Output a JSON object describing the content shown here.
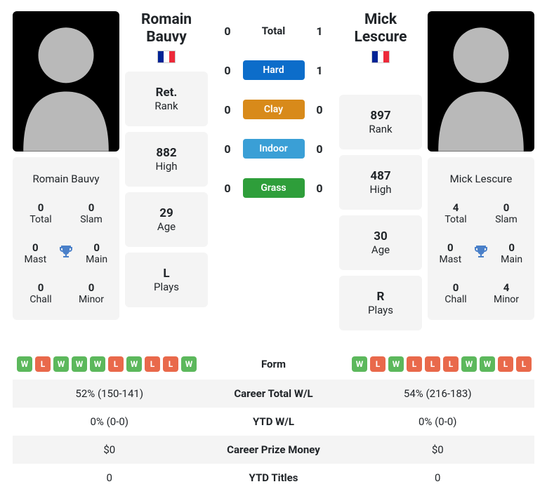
{
  "players": {
    "p1": {
      "name": "Romain Bauvy",
      "first": "Romain",
      "last": "Bauvy",
      "flag": "FR",
      "rank": "Ret.",
      "high": "882",
      "age": "29",
      "plays": "L",
      "titles": {
        "total": "0",
        "slam": "0",
        "mast": "0",
        "main": "0",
        "chall": "0",
        "minor": "0"
      },
      "careerWL": "52% (150-141)",
      "ytdWL": "0% (0-0)",
      "prize": "$0",
      "ytdTitles": "0",
      "form": [
        "W",
        "L",
        "W",
        "W",
        "W",
        "L",
        "W",
        "L",
        "L",
        "W"
      ]
    },
    "p2": {
      "name": "Mick Lescure",
      "first": "Mick",
      "last": "Lescure",
      "flag": "FR",
      "rank": "897",
      "high": "487",
      "age": "30",
      "plays": "R",
      "titles": {
        "total": "4",
        "slam": "0",
        "mast": "0",
        "main": "0",
        "chall": "0",
        "minor": "4"
      },
      "careerWL": "54% (216-183)",
      "ytdWL": "0% (0-0)",
      "prize": "$0",
      "ytdTitles": "0",
      "form": [
        "W",
        "L",
        "W",
        "L",
        "L",
        "L",
        "W",
        "W",
        "L",
        "L"
      ]
    }
  },
  "h2h": {
    "total": {
      "p1": "0",
      "p2": "1",
      "label": "Total"
    },
    "hard": {
      "p1": "0",
      "p2": "1",
      "label": "Hard",
      "color": "#0c6dca"
    },
    "clay": {
      "p1": "0",
      "p2": "0",
      "label": "Clay",
      "color": "#d88a1a"
    },
    "indoor": {
      "p1": "0",
      "p2": "0",
      "label": "Indoor",
      "color": "#3a9fd6"
    },
    "grass": {
      "p1": "0",
      "p2": "0",
      "label": "Grass",
      "color": "#2e9e3a"
    }
  },
  "labels": {
    "rank": "Rank",
    "high": "High",
    "age": "Age",
    "plays": "Plays",
    "titles": {
      "total": "Total",
      "slam": "Slam",
      "mast": "Mast",
      "main": "Main",
      "chall": "Chall",
      "minor": "Minor"
    },
    "table": {
      "form": "Form",
      "careerWL": "Career Total W/L",
      "ytdWL": "YTD W/L",
      "prize": "Career Prize Money",
      "ytdTitles": "YTD Titles"
    }
  },
  "style": {
    "win_color": "#5cb85c",
    "loss_color": "#e9694b",
    "card_bg": "#f4f4f4"
  }
}
